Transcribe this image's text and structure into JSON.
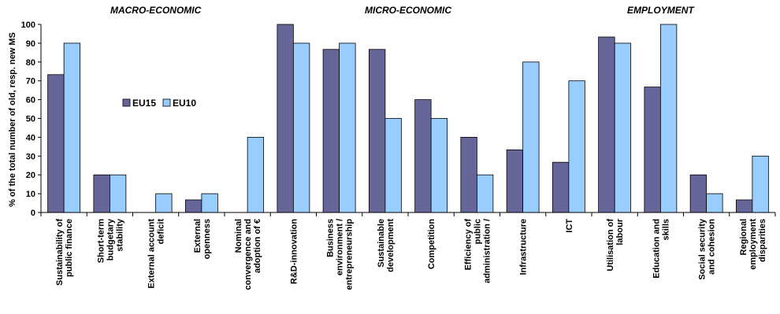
{
  "chart_data": {
    "type": "bar",
    "ylabel": "% of the total number of old, resp. new MS",
    "ylim": [
      0,
      100
    ],
    "yticks": [
      0,
      10,
      20,
      30,
      40,
      50,
      60,
      70,
      80,
      90,
      100
    ],
    "legend_position": "left, inside plot",
    "groups": [
      {
        "label": "MACRO-ECONOMIC",
        "from": 0,
        "to": 4
      },
      {
        "label": "MICRO-ECONOMIC",
        "from": 5,
        "to": 10
      },
      {
        "label": "EMPLOYMENT",
        "from": 11,
        "to": 15
      }
    ],
    "categories": [
      [
        "Sustainability of",
        "public finance"
      ],
      [
        "Short-term",
        "budgetary",
        "stability"
      ],
      [
        "External account",
        "deficit"
      ],
      [
        "External",
        "openness"
      ],
      [
        "Nominal",
        "convergence and",
        "adoption of €"
      ],
      [
        "R&D-innovation"
      ],
      [
        "Business",
        "environment /",
        "entrepreneurship"
      ],
      [
        "Sustainable",
        "development"
      ],
      [
        "Competition"
      ],
      [
        "Efficiency of",
        "public",
        "administration /"
      ],
      [
        "Infrastructure"
      ],
      [
        "ICT"
      ],
      [
        "Utilisation of",
        "labour"
      ],
      [
        "Education and",
        "skills"
      ],
      [
        "Social security",
        "and cohesion"
      ],
      [
        "Regional",
        "employment",
        "disparities"
      ]
    ],
    "series": [
      {
        "name": "EU15",
        "color": "#666699",
        "values": [
          73.3,
          20,
          0,
          6.7,
          0,
          100,
          86.7,
          86.7,
          60,
          40,
          33.3,
          26.7,
          93.3,
          66.7,
          20,
          6.7
        ]
      },
      {
        "name": "EU10",
        "color": "#99CCFF",
        "values": [
          90,
          20,
          10,
          10,
          40,
          90,
          90,
          50,
          50,
          20,
          80,
          70,
          90,
          100,
          10,
          30
        ]
      }
    ]
  }
}
